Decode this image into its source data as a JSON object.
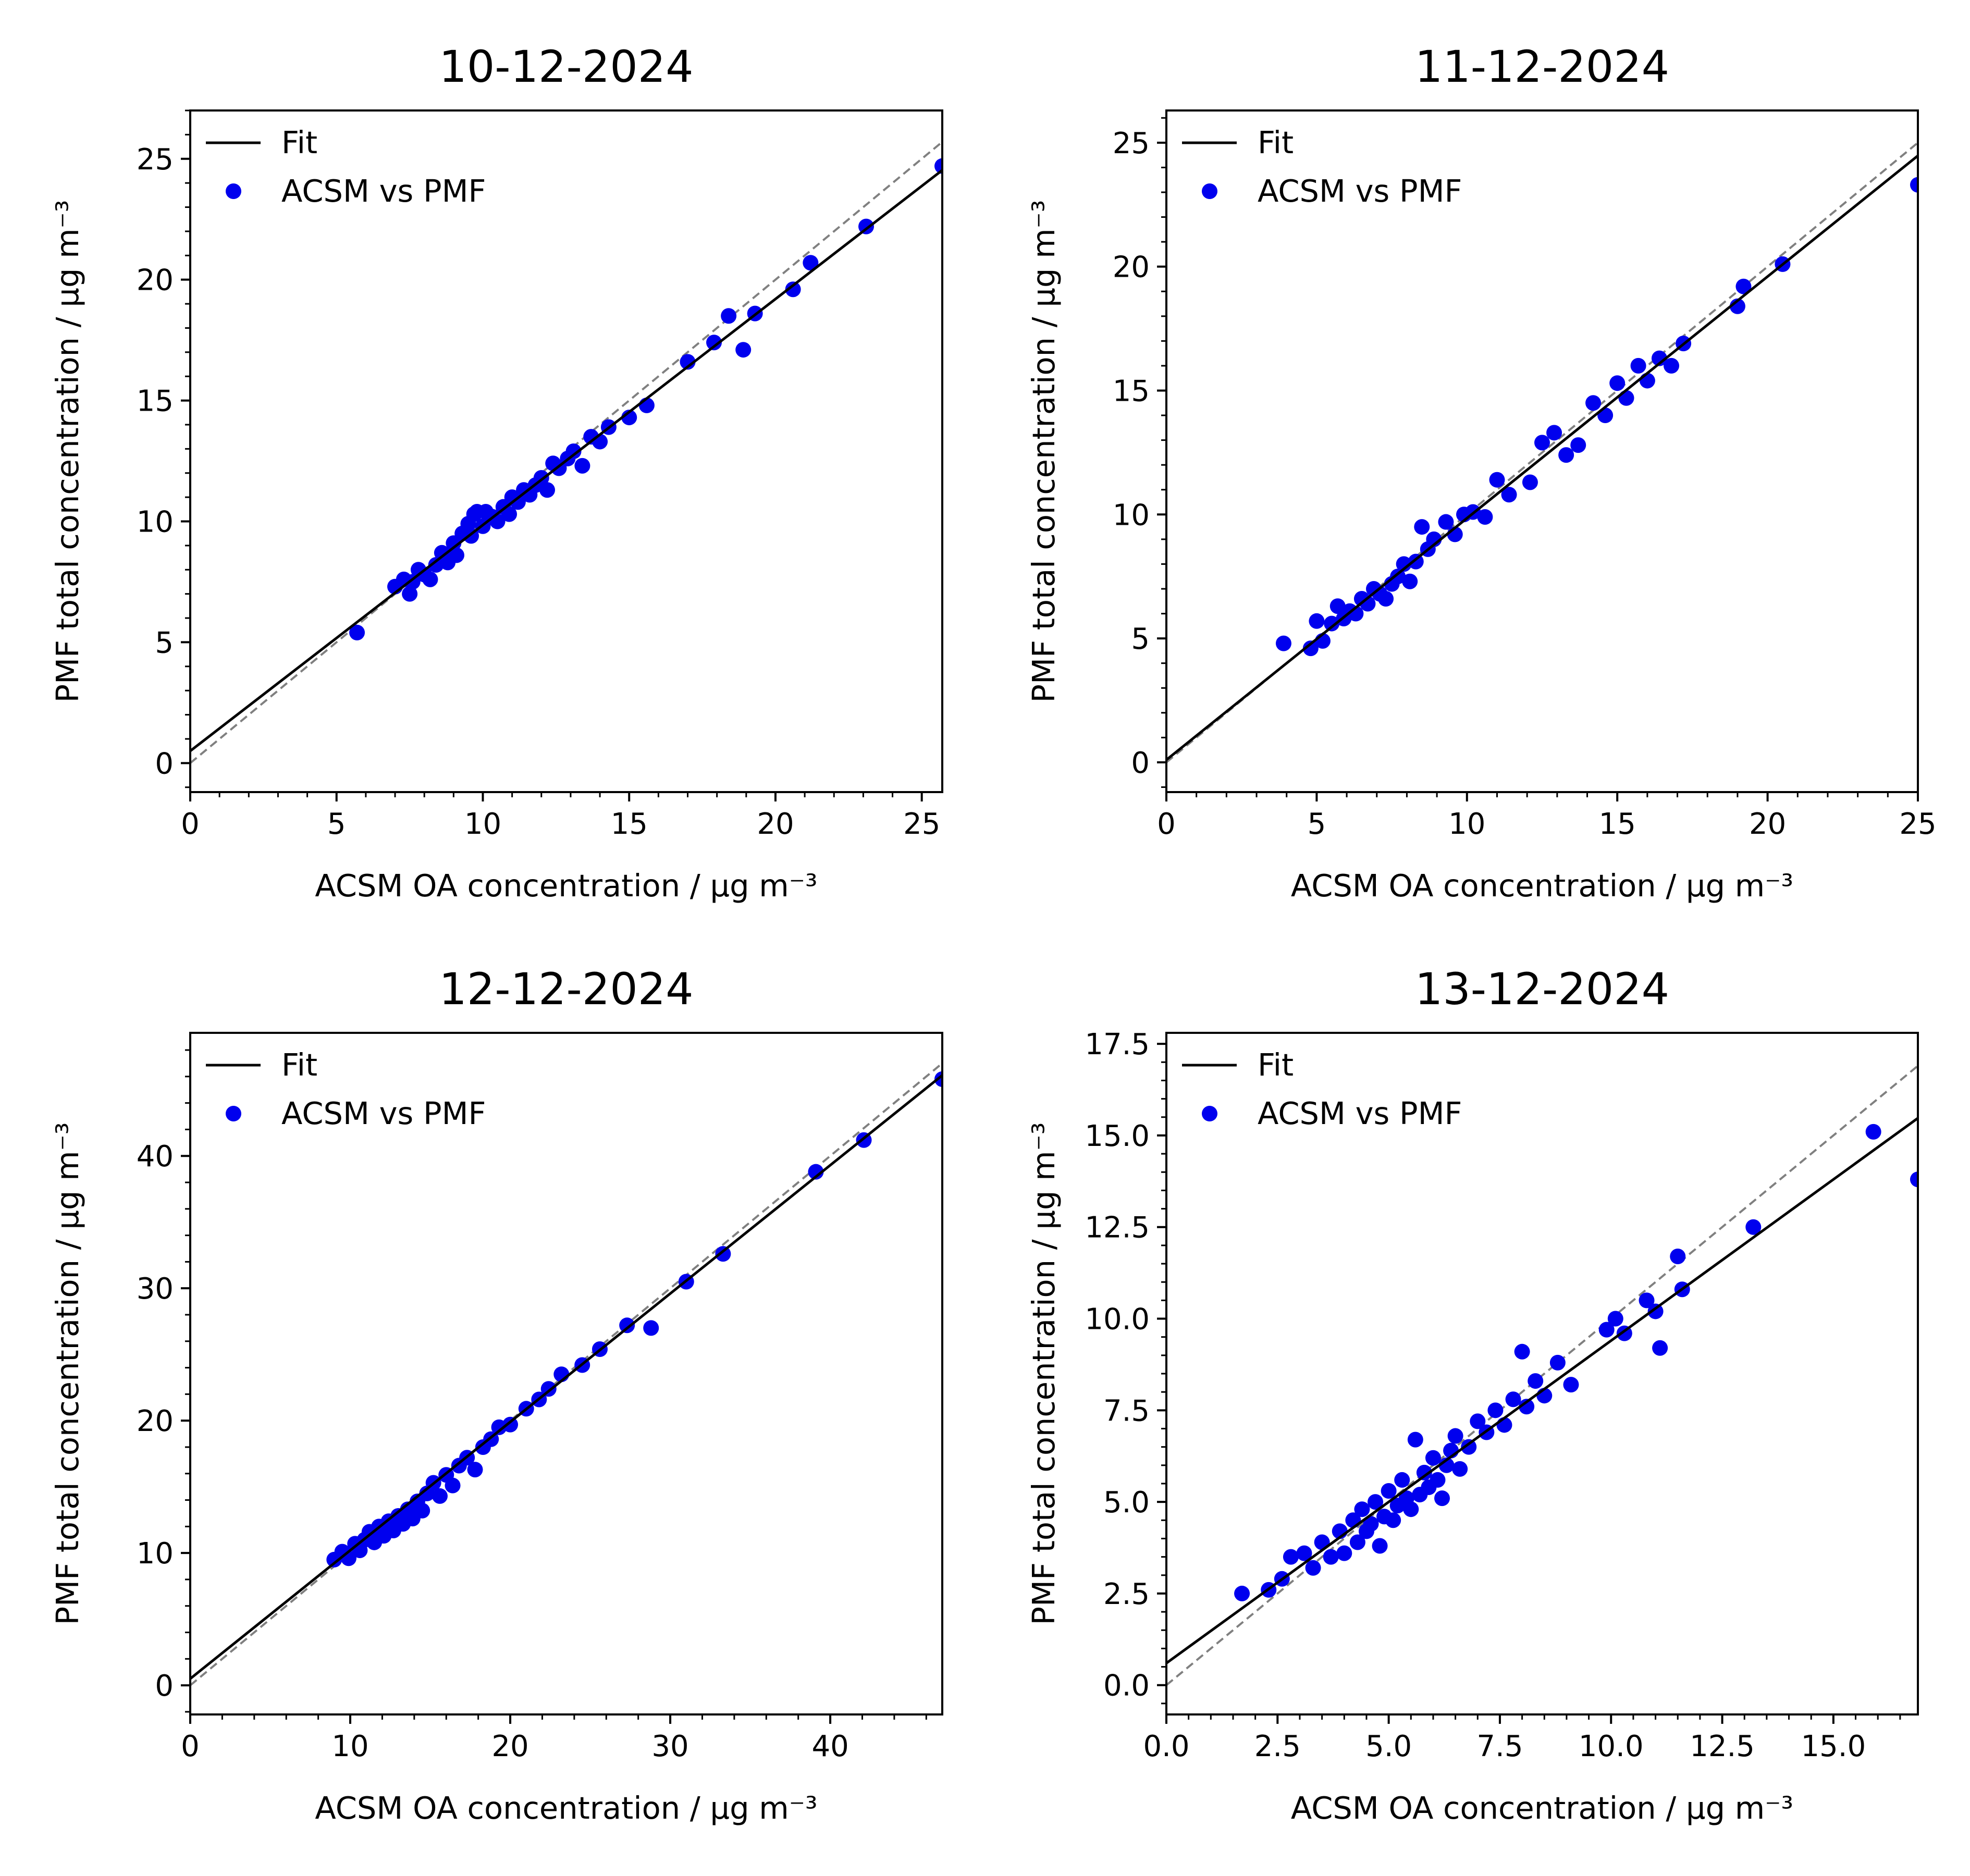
{
  "chart_data": [
    {
      "type": "scatter",
      "title": "10-12-2024",
      "xlabel": "ACSM OA concentration / μg m⁻³",
      "ylabel": "PMF total concentration / μg m⁻³",
      "xlim": [
        0,
        25.7
      ],
      "ylim": [
        -1.2,
        27
      ],
      "xticks": [
        "0",
        "5",
        "10",
        "15",
        "20",
        "25"
      ],
      "yticks": [
        "0",
        "5",
        "10",
        "15",
        "20",
        "25"
      ],
      "legend": {
        "position": "top-left",
        "entries": [
          "Fit",
          "ACSM vs PMF"
        ]
      },
      "fit_line": {
        "slope": 0.935,
        "intercept": 0.5
      },
      "reference_line": "y = x (dashed gray)",
      "series": [
        {
          "name": "ACSM vs PMF",
          "x": [
            5.7,
            7.0,
            7.3,
            7.5,
            7.6,
            7.8,
            8.0,
            8.2,
            8.4,
            8.6,
            8.8,
            9.0,
            9.1,
            9.3,
            9.5,
            9.6,
            9.7,
            9.8,
            10.0,
            10.1,
            10.3,
            10.5,
            10.7,
            10.9,
            11.0,
            11.2,
            11.4,
            11.6,
            11.8,
            12.0,
            12.2,
            12.4,
            12.6,
            12.9,
            13.1,
            13.4,
            13.7,
            14.0,
            14.3,
            15.0,
            15.6,
            17.0,
            17.9,
            18.4,
            18.9,
            19.3,
            20.6,
            21.2,
            23.1,
            25.7
          ],
          "y": [
            5.4,
            7.3,
            7.6,
            7.0,
            7.5,
            8.0,
            7.8,
            7.6,
            8.2,
            8.7,
            8.3,
            9.1,
            8.6,
            9.5,
            9.9,
            9.4,
            10.3,
            10.4,
            9.8,
            10.4,
            10.2,
            10.0,
            10.6,
            10.3,
            11.0,
            10.8,
            11.3,
            11.1,
            11.5,
            11.8,
            11.3,
            12.4,
            12.2,
            12.6,
            12.9,
            12.3,
            13.5,
            13.3,
            13.9,
            14.3,
            14.8,
            16.6,
            17.4,
            18.5,
            17.1,
            18.6,
            19.6,
            20.7,
            22.2,
            24.7
          ]
        }
      ]
    },
    {
      "type": "scatter",
      "title": "11-12-2024",
      "xlabel": "ACSM OA concentration / μg m⁻³",
      "ylabel": "PMF total concentration / μg m⁻³",
      "xlim": [
        0,
        25
      ],
      "ylim": [
        -1.2,
        26.3
      ],
      "xticks": [
        "0",
        "5",
        "10",
        "15",
        "20",
        "25"
      ],
      "yticks": [
        "0",
        "5",
        "10",
        "15",
        "20",
        "25"
      ],
      "legend": {
        "position": "top-left",
        "entries": [
          "Fit",
          "ACSM vs PMF"
        ]
      },
      "fit_line": {
        "slope": 0.975,
        "intercept": 0.1
      },
      "reference_line": "y = x (dashed gray)",
      "series": [
        {
          "name": "ACSM vs PMF",
          "x": [
            3.9,
            4.8,
            5.0,
            5.2,
            5.5,
            5.7,
            5.9,
            6.1,
            6.3,
            6.5,
            6.7,
            6.9,
            7.1,
            7.3,
            7.5,
            7.7,
            7.9,
            8.1,
            8.3,
            8.5,
            8.7,
            8.9,
            9.3,
            9.6,
            9.9,
            10.2,
            10.6,
            11.0,
            11.4,
            12.1,
            12.5,
            12.9,
            13.3,
            13.7,
            14.2,
            14.6,
            15.0,
            15.3,
            15.7,
            16.0,
            16.4,
            16.8,
            17.2,
            19.0,
            19.2,
            20.5,
            25.0
          ],
          "y": [
            4.8,
            4.6,
            5.7,
            4.9,
            5.6,
            6.3,
            5.8,
            6.1,
            6.0,
            6.6,
            6.4,
            7.0,
            6.8,
            6.6,
            7.2,
            7.5,
            8.0,
            7.3,
            8.1,
            9.5,
            8.6,
            9.0,
            9.7,
            9.2,
            10.0,
            10.1,
            9.9,
            11.4,
            10.8,
            11.3,
            12.9,
            13.3,
            12.4,
            12.8,
            14.5,
            14.0,
            15.3,
            14.7,
            16.0,
            15.4,
            16.3,
            16.0,
            16.9,
            18.4,
            19.2,
            20.1,
            23.3
          ]
        }
      ]
    },
    {
      "type": "scatter",
      "title": "12-12-2024",
      "xlabel": "ACSM OA concentration / μg m⁻³",
      "ylabel": "PMF total concentration / μg m⁻³",
      "xlim": [
        0,
        47
      ],
      "ylim": [
        -2.2,
        49.3
      ],
      "xticks": [
        "0",
        "10",
        "20",
        "30",
        "40"
      ],
      "yticks": [
        "0",
        "10",
        "20",
        "30",
        "40"
      ],
      "legend": {
        "position": "top-left",
        "entries": [
          "Fit",
          "ACSM vs PMF"
        ]
      },
      "fit_line": {
        "slope": 0.97,
        "intercept": 0.5
      },
      "reference_line": "y = x (dashed gray)",
      "series": [
        {
          "name": "ACSM vs PMF",
          "x": [
            9.0,
            9.5,
            9.9,
            10.3,
            10.6,
            10.9,
            11.2,
            11.5,
            11.8,
            12.1,
            12.4,
            12.7,
            13.0,
            13.3,
            13.6,
            13.9,
            14.2,
            14.5,
            14.8,
            15.2,
            15.6,
            16.0,
            16.4,
            16.8,
            17.3,
            17.8,
            18.3,
            18.8,
            19.3,
            20.0,
            21.0,
            21.8,
            22.4,
            23.2,
            24.5,
            25.6,
            27.3,
            28.8,
            31.0,
            33.3,
            39.1,
            42.1,
            47.0
          ],
          "y": [
            9.5,
            10.1,
            9.6,
            10.7,
            10.2,
            11.0,
            11.6,
            10.8,
            12.0,
            11.3,
            12.4,
            11.7,
            12.8,
            12.2,
            13.3,
            12.6,
            13.9,
            13.2,
            14.5,
            15.3,
            14.3,
            15.9,
            15.1,
            16.6,
            17.2,
            16.3,
            18.0,
            18.6,
            19.5,
            19.7,
            20.9,
            21.6,
            22.4,
            23.5,
            24.2,
            25.4,
            27.2,
            27.0,
            30.5,
            32.6,
            38.8,
            41.2,
            45.8
          ]
        }
      ]
    },
    {
      "type": "scatter",
      "title": "13-12-2024",
      "xlabel": "ACSM OA concentration / μg m⁻³",
      "ylabel": "PMF total concentration / μg m⁻³",
      "xlim": [
        0,
        16.9
      ],
      "ylim": [
        -0.8,
        17.8
      ],
      "xticks": [
        "0.0",
        "2.5",
        "5.0",
        "7.5",
        "10.0",
        "12.5",
        "15.0"
      ],
      "yticks": [
        "0.0",
        "2.5",
        "5.0",
        "7.5",
        "10.0",
        "12.5",
        "15.0",
        "17.5"
      ],
      "legend": {
        "position": "top-left",
        "entries": [
          "Fit",
          "ACSM vs PMF"
        ]
      },
      "fit_line": {
        "slope": 0.88,
        "intercept": 0.6
      },
      "reference_line": "y = x (dashed gray)",
      "series": [
        {
          "name": "ACSM vs PMF",
          "x": [
            1.7,
            2.3,
            2.6,
            2.8,
            3.1,
            3.3,
            3.5,
            3.7,
            3.9,
            4.0,
            4.2,
            4.3,
            4.4,
            4.5,
            4.6,
            4.7,
            4.8,
            4.9,
            5.0,
            5.1,
            5.2,
            5.3,
            5.4,
            5.5,
            5.6,
            5.7,
            5.8,
            5.9,
            6.0,
            6.1,
            6.2,
            6.3,
            6.4,
            6.5,
            6.6,
            6.8,
            7.0,
            7.2,
            7.4,
            7.6,
            7.8,
            8.0,
            8.1,
            8.3,
            8.5,
            8.8,
            9.1,
            9.9,
            10.1,
            10.3,
            10.8,
            11.0,
            11.1,
            11.5,
            11.6,
            13.2,
            15.9,
            16.9
          ],
          "y": [
            2.5,
            2.6,
            2.9,
            3.5,
            3.6,
            3.2,
            3.9,
            3.5,
            4.2,
            3.6,
            4.5,
            3.9,
            4.8,
            4.2,
            4.4,
            5.0,
            3.8,
            4.6,
            5.3,
            4.5,
            4.9,
            5.6,
            5.1,
            4.8,
            6.7,
            5.2,
            5.8,
            5.4,
            6.2,
            5.6,
            5.1,
            6.0,
            6.4,
            6.8,
            5.9,
            6.5,
            7.2,
            6.9,
            7.5,
            7.1,
            7.8,
            9.1,
            7.6,
            8.3,
            7.9,
            8.8,
            8.2,
            9.7,
            10.0,
            9.6,
            10.5,
            10.2,
            9.2,
            11.7,
            10.8,
            12.5,
            15.1,
            13.8
          ]
        }
      ]
    }
  ]
}
